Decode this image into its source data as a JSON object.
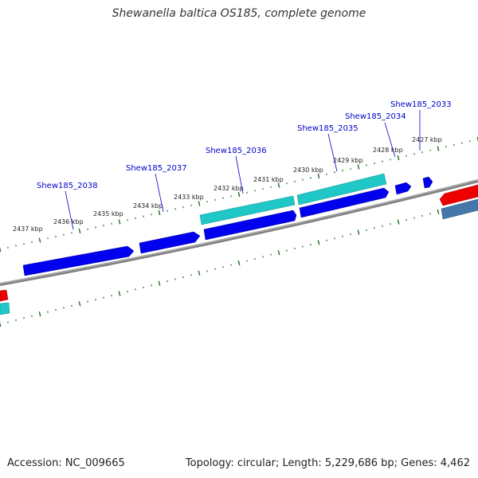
{
  "title": "Shewanella baltica OS185, complete genome",
  "footer": {
    "accession": "Accession: NC_009665",
    "summary": "Topology: circular; Length: 5,229,686 bp; Genes: 4,462"
  },
  "colors": {
    "forward_cds": "#0000ee",
    "reverse_cds": "#00bfbf",
    "red_feature": "#ee0000",
    "steel_feature": "#4477aa",
    "backbone": "#808080",
    "tick": "#207020",
    "gene_label": "#0000cc"
  },
  "scale_ticks": [
    "2427 kbp",
    "2428 kbp",
    "2429 kbp",
    "2430 kbp",
    "2431 kbp",
    "2432 kbp",
    "2433 kbp",
    "2434 kbp",
    "2435 kbp",
    "2436 kbp",
    "2437 kbp"
  ],
  "gene_labels": [
    "Shew185_2033",
    "Shew185_2034",
    "Shew185_2035",
    "Shew185_2036",
    "Shew185_2037",
    "Shew185_2038"
  ]
}
